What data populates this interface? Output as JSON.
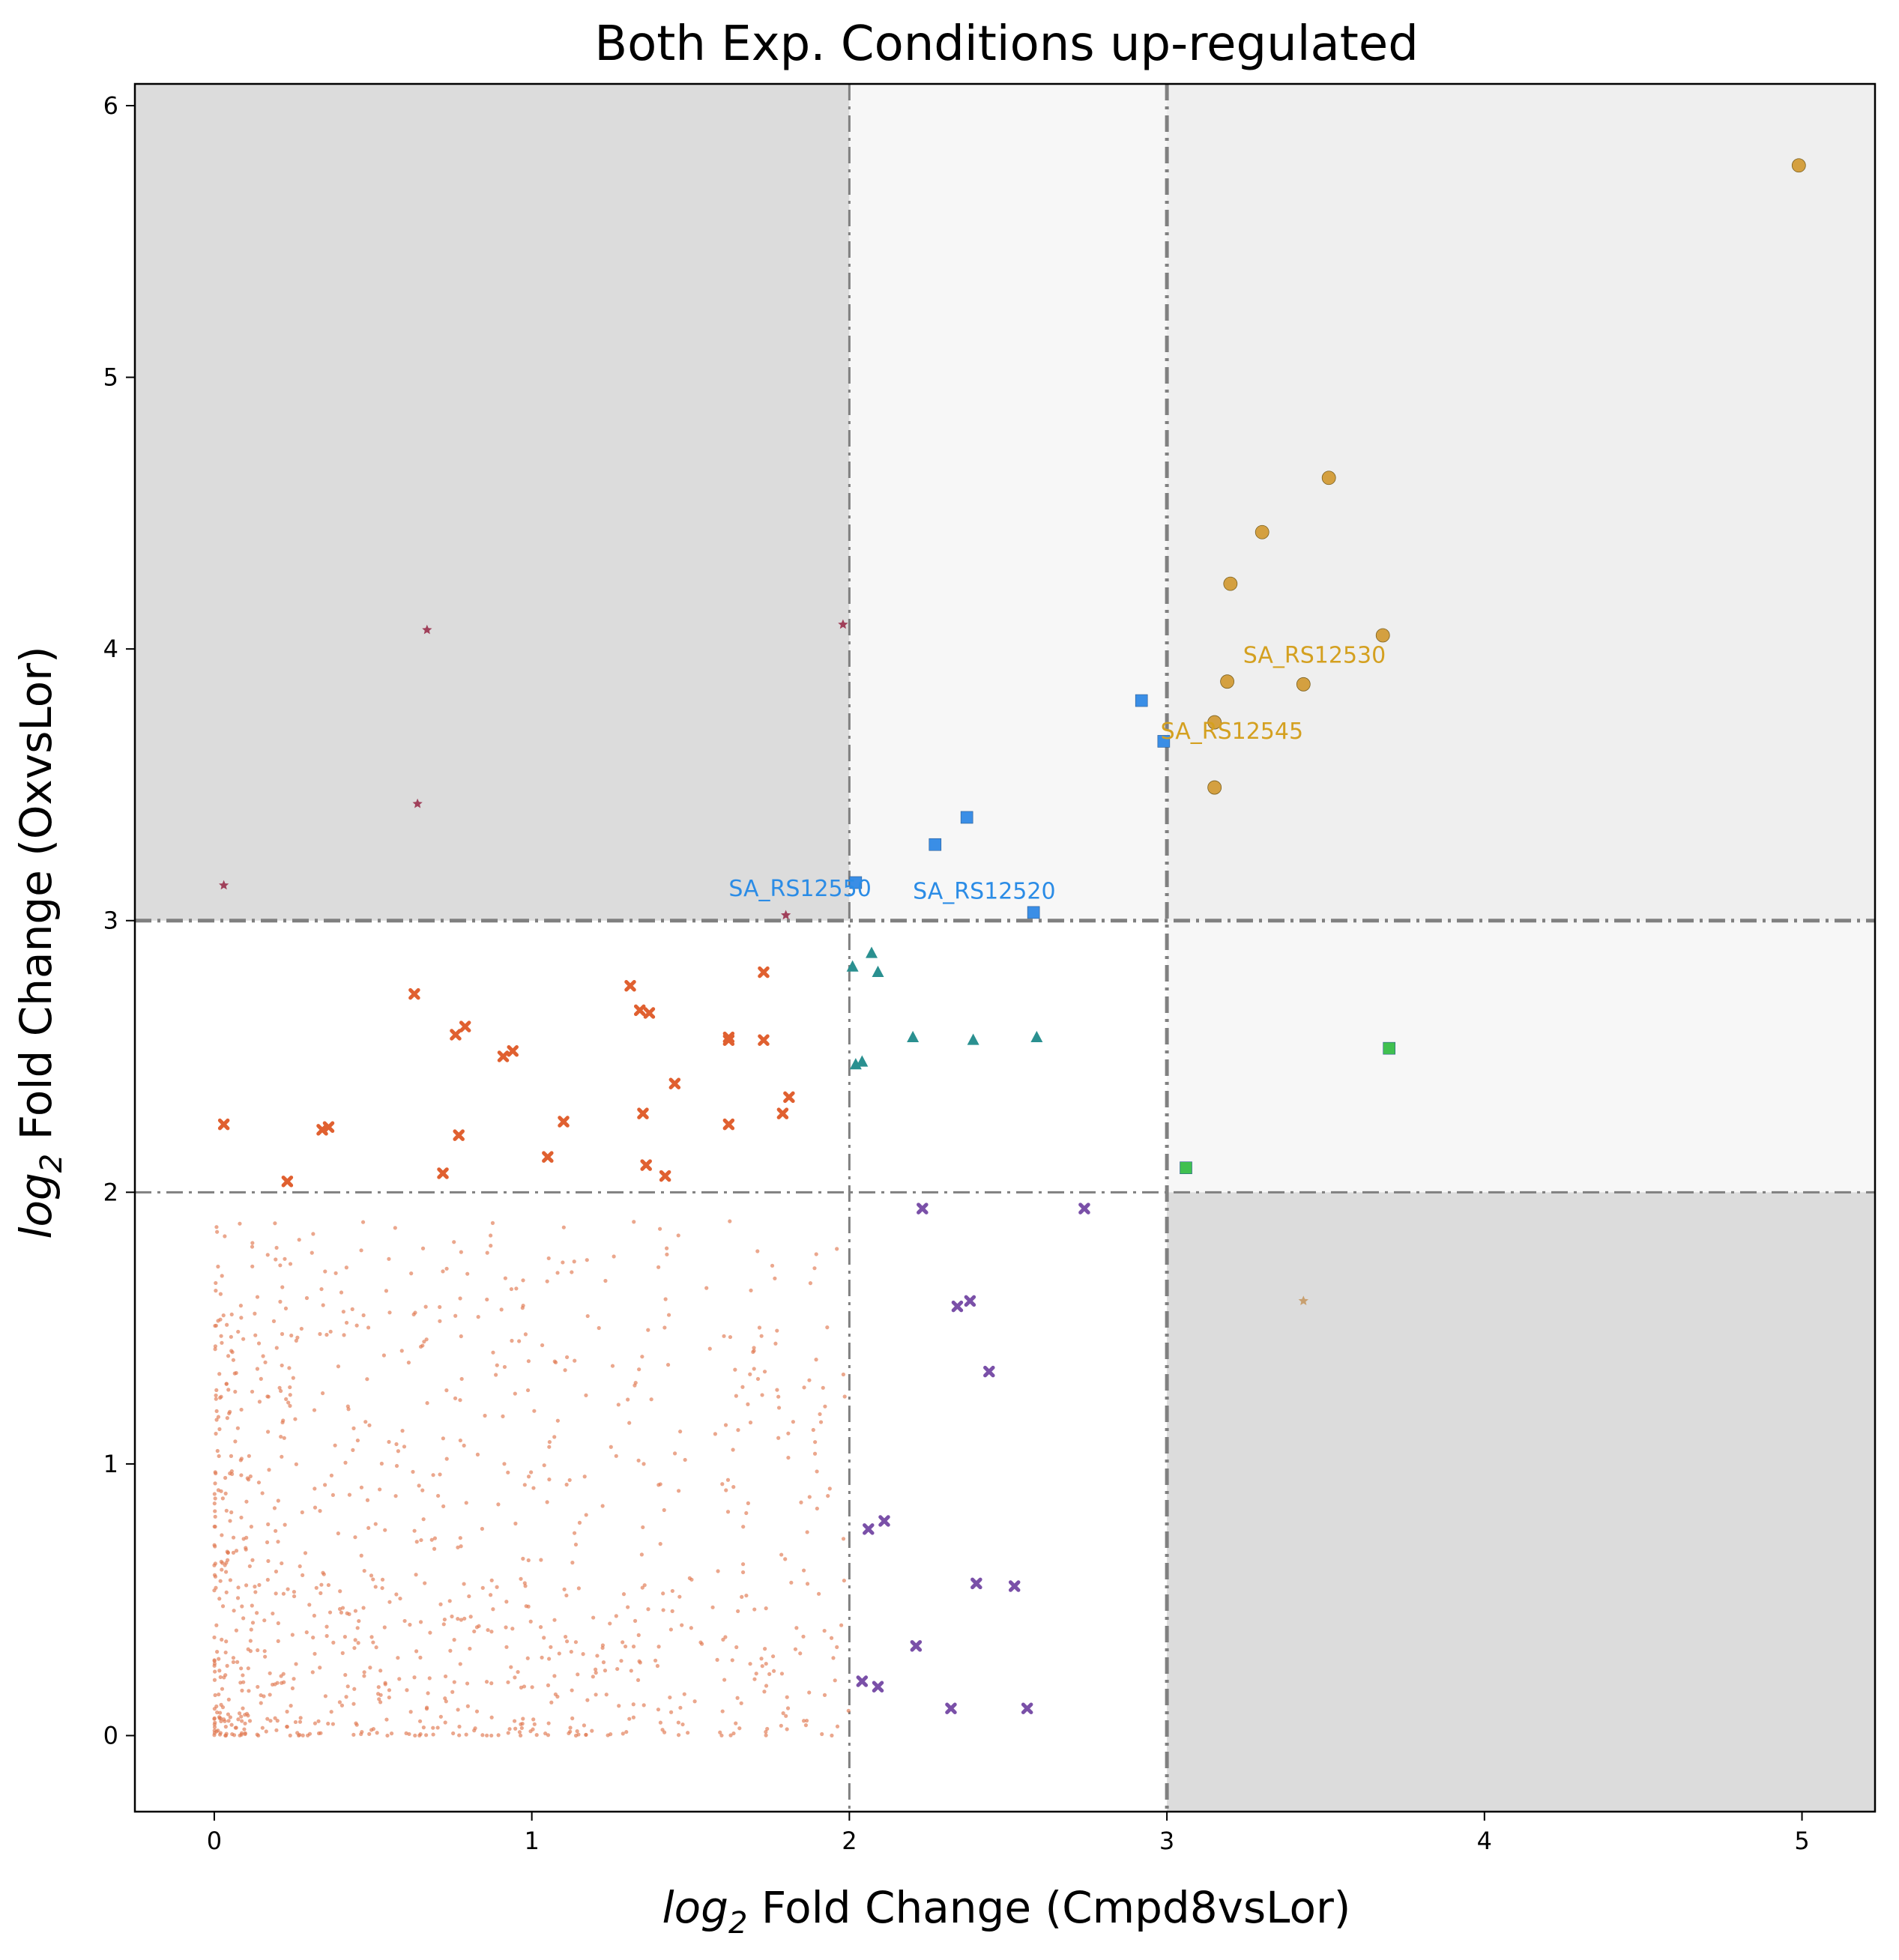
{
  "chart_data": {
    "type": "scatter",
    "title": "Both Exp. Conditions up-regulated",
    "xlabel": {
      "prefix": "log",
      "sub": "2",
      "text": " Fold Change (Cmpd8vsLor)"
    },
    "ylabel": {
      "prefix": "log",
      "sub": "2",
      "text": " Fold Change (OxvsLor)"
    },
    "xlim": [
      -0.25,
      5.23
    ],
    "ylim": [
      -0.28,
      6.08
    ],
    "xticks": [
      0,
      1,
      2,
      3,
      4,
      5
    ],
    "yticks": [
      0,
      1,
      2,
      3,
      4,
      5,
      6
    ],
    "grid": false,
    "thresholds": {
      "x_low": 2,
      "x_high": 3,
      "y_low": 2,
      "y_high": 3
    },
    "shaded_regions": [
      {
        "x": [
          -0.25,
          2
        ],
        "y": [
          3,
          6.08
        ],
        "color": "#dcdcdc"
      },
      {
        "x": [
          2,
          3
        ],
        "y": [
          3,
          6.08
        ],
        "color": "#f7f7f7"
      },
      {
        "x": [
          3,
          5.23
        ],
        "y": [
          3,
          6.08
        ],
        "color": "#efefef"
      },
      {
        "x": [
          3,
          5.23
        ],
        "y": [
          2,
          3
        ],
        "color": "#f7f7f7"
      },
      {
        "x": [
          3,
          5.23
        ],
        "y": [
          -0.28,
          2
        ],
        "color": "#dcdcdc"
      }
    ],
    "series": [
      {
        "marker": "circle",
        "color": "#d4a040",
        "size": 9,
        "points": [
          [
            4.99,
            5.78
          ],
          [
            3.51,
            4.63
          ],
          [
            3.3,
            4.43
          ],
          [
            3.2,
            4.24
          ],
          [
            3.68,
            4.05
          ],
          [
            3.19,
            3.88
          ],
          [
            3.43,
            3.87
          ],
          [
            3.15,
            3.73
          ],
          [
            3.15,
            3.49
          ]
        ]
      },
      {
        "marker": "square",
        "color": "#3a8ee6",
        "size": 8,
        "points": [
          [
            2.92,
            3.81
          ],
          [
            2.99,
            3.66
          ],
          [
            2.37,
            3.38
          ],
          [
            2.27,
            3.28
          ],
          [
            2.02,
            3.14
          ],
          [
            2.58,
            3.03
          ]
        ]
      },
      {
        "marker": "star",
        "color": "#a0405a",
        "size": 7,
        "points": [
          [
            0.67,
            4.07
          ],
          [
            1.98,
            4.09
          ],
          [
            0.64,
            3.43
          ],
          [
            0.03,
            3.13
          ],
          [
            1.8,
            3.02
          ]
        ]
      },
      {
        "marker": "triangle",
        "color": "#2a9090",
        "size": 8,
        "points": [
          [
            2.07,
            2.88
          ],
          [
            2.01,
            2.83
          ],
          [
            2.09,
            2.81
          ],
          [
            2.2,
            2.57
          ],
          [
            2.39,
            2.56
          ],
          [
            2.59,
            2.57
          ],
          [
            2.04,
            2.48
          ],
          [
            2.02,
            2.47
          ]
        ]
      },
      {
        "marker": "x",
        "color": "#e06030",
        "size": 7,
        "points": [
          [
            0.03,
            2.25
          ],
          [
            0.23,
            2.04
          ],
          [
            0.34,
            2.23
          ],
          [
            0.36,
            2.24
          ],
          [
            0.63,
            2.73
          ],
          [
            0.72,
            2.07
          ],
          [
            0.76,
            2.58
          ],
          [
            0.77,
            2.21
          ],
          [
            0.79,
            2.61
          ],
          [
            0.91,
            2.5
          ],
          [
            0.94,
            2.52
          ],
          [
            1.05,
            2.13
          ],
          [
            1.1,
            2.26
          ],
          [
            1.31,
            2.76
          ],
          [
            1.34,
            2.67
          ],
          [
            1.35,
            2.29
          ],
          [
            1.36,
            2.1
          ],
          [
            1.37,
            2.66
          ],
          [
            1.42,
            2.06
          ],
          [
            1.45,
            2.4
          ],
          [
            1.62,
            2.57
          ],
          [
            1.62,
            2.56
          ],
          [
            1.62,
            2.25
          ],
          [
            1.73,
            2.81
          ],
          [
            1.73,
            2.56
          ],
          [
            1.79,
            2.29
          ],
          [
            1.81,
            2.35
          ]
        ]
      },
      {
        "marker": "x",
        "color": "#7a50a8",
        "size": 7,
        "points": [
          [
            2.23,
            1.94
          ],
          [
            2.74,
            1.94
          ],
          [
            2.34,
            1.58
          ],
          [
            2.38,
            1.6
          ],
          [
            2.44,
            1.34
          ],
          [
            2.11,
            0.79
          ],
          [
            2.06,
            0.76
          ],
          [
            2.4,
            0.56
          ],
          [
            2.52,
            0.55
          ],
          [
            2.21,
            0.33
          ],
          [
            2.04,
            0.2
          ],
          [
            2.09,
            0.18
          ],
          [
            2.32,
            0.1
          ],
          [
            2.56,
            0.1
          ]
        ]
      },
      {
        "marker": "square",
        "color": "#40c050",
        "size": 8,
        "points": [
          [
            3.7,
            2.53
          ],
          [
            3.06,
            2.09
          ]
        ]
      },
      {
        "marker": "star",
        "color": "#c8a070",
        "size": 7,
        "points": [
          [
            3.43,
            1.6
          ]
        ]
      },
      {
        "marker": "dot",
        "color": "#e07850",
        "size": 2.6,
        "count": 1000,
        "x_max": 2.0,
        "y_max": 2.0
      }
    ],
    "annotations": [
      {
        "text": "SA_RS12530",
        "x": 3.24,
        "y": 3.95,
        "color": "#d4a020"
      },
      {
        "text": "SA_RS12545",
        "x": 2.98,
        "y": 3.67,
        "color": "#d4a020"
      },
      {
        "text": "SA_RS12550",
        "x": 1.62,
        "y": 3.09,
        "color": "#2b8ce6"
      },
      {
        "text": "SA_RS12520",
        "x": 2.2,
        "y": 3.08,
        "color": "#2b8ce6"
      }
    ]
  }
}
